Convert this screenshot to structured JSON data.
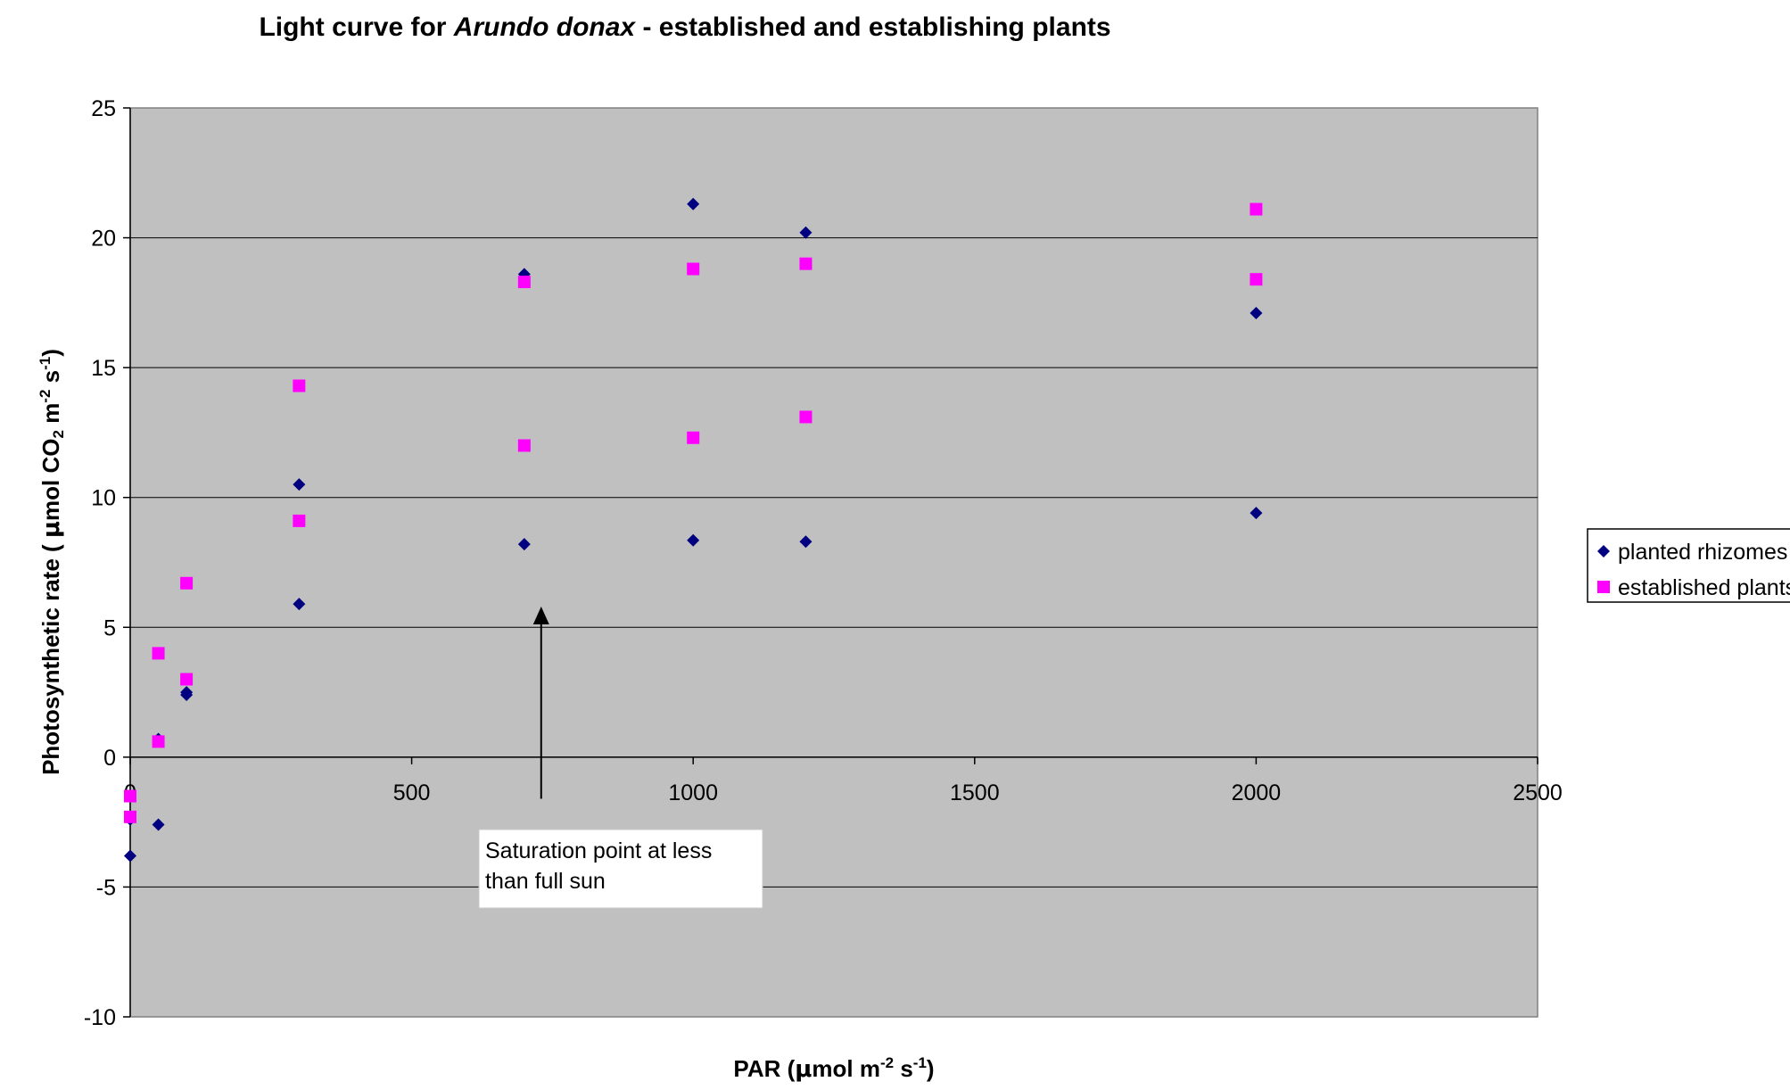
{
  "chart_data": {
    "type": "scatter",
    "title": {
      "prefix": "Light curve for ",
      "species": "Arundo donax",
      "suffix": " - established and establishing plants"
    },
    "xlabel": {
      "prefix": "PAR (",
      "mu": "μ",
      "mid1": "mol m",
      "sup1": "-2",
      "mid2": " s",
      "sup2": "-1",
      "end": ")"
    },
    "ylabel": {
      "prefix": "Photosynthetic rate ( ",
      "mu": "μ",
      "mid1": "mol CO",
      "sub1": "2",
      "mid2": " m",
      "sup1": "-2",
      "mid3": " s",
      "sup2": "-1",
      "end": ")"
    },
    "xlim": [
      0,
      2500
    ],
    "ylim": [
      -10,
      25
    ],
    "x_ticks": [
      0,
      500,
      1000,
      1500,
      2000,
      2500
    ],
    "y_ticks": [
      -10,
      -5,
      0,
      5,
      10,
      15,
      20,
      25
    ],
    "grid": "horizontal",
    "plot_background": "#c0c0c0",
    "legend_position": "right",
    "series": [
      {
        "name": "planted rhizomes",
        "marker": "diamond",
        "color": "#000080",
        "points": [
          {
            "x": 0,
            "y": -1.5
          },
          {
            "x": 0,
            "y": -2.4
          },
          {
            "x": 0,
            "y": -3.8
          },
          {
            "x": 50,
            "y": -2.6
          },
          {
            "x": 50,
            "y": 0.7
          },
          {
            "x": 100,
            "y": 2.4
          },
          {
            "x": 100,
            "y": 2.5
          },
          {
            "x": 300,
            "y": 10.5
          },
          {
            "x": 300,
            "y": 5.9
          },
          {
            "x": 700,
            "y": 18.6
          },
          {
            "x": 700,
            "y": 8.2
          },
          {
            "x": 1000,
            "y": 21.3
          },
          {
            "x": 1000,
            "y": 8.35
          },
          {
            "x": 1200,
            "y": 20.2
          },
          {
            "x": 1200,
            "y": 8.3
          },
          {
            "x": 2000,
            "y": 17.1
          },
          {
            "x": 2000,
            "y": 9.4
          }
        ]
      },
      {
        "name": "established plants",
        "marker": "square",
        "color": "#ff00ff",
        "points": [
          {
            "x": 0,
            "y": -1.5
          },
          {
            "x": 0,
            "y": -2.3
          },
          {
            "x": 50,
            "y": 4.0
          },
          {
            "x": 50,
            "y": 0.6
          },
          {
            "x": 100,
            "y": 6.7
          },
          {
            "x": 100,
            "y": 3.0
          },
          {
            "x": 300,
            "y": 14.3
          },
          {
            "x": 300,
            "y": 9.1
          },
          {
            "x": 700,
            "y": 18.3
          },
          {
            "x": 700,
            "y": 12.0
          },
          {
            "x": 1000,
            "y": 18.8
          },
          {
            "x": 1000,
            "y": 12.3
          },
          {
            "x": 1200,
            "y": 19.0
          },
          {
            "x": 1200,
            "y": 13.1
          },
          {
            "x": 2000,
            "y": 21.1
          },
          {
            "x": 2000,
            "y": 18.4
          }
        ]
      }
    ],
    "annotation": {
      "lines": [
        "Saturation point at less",
        "than full sun"
      ],
      "arrow_x": 730,
      "arrow_from_y": -1.6,
      "arrow_to_y": 5.8
    }
  }
}
